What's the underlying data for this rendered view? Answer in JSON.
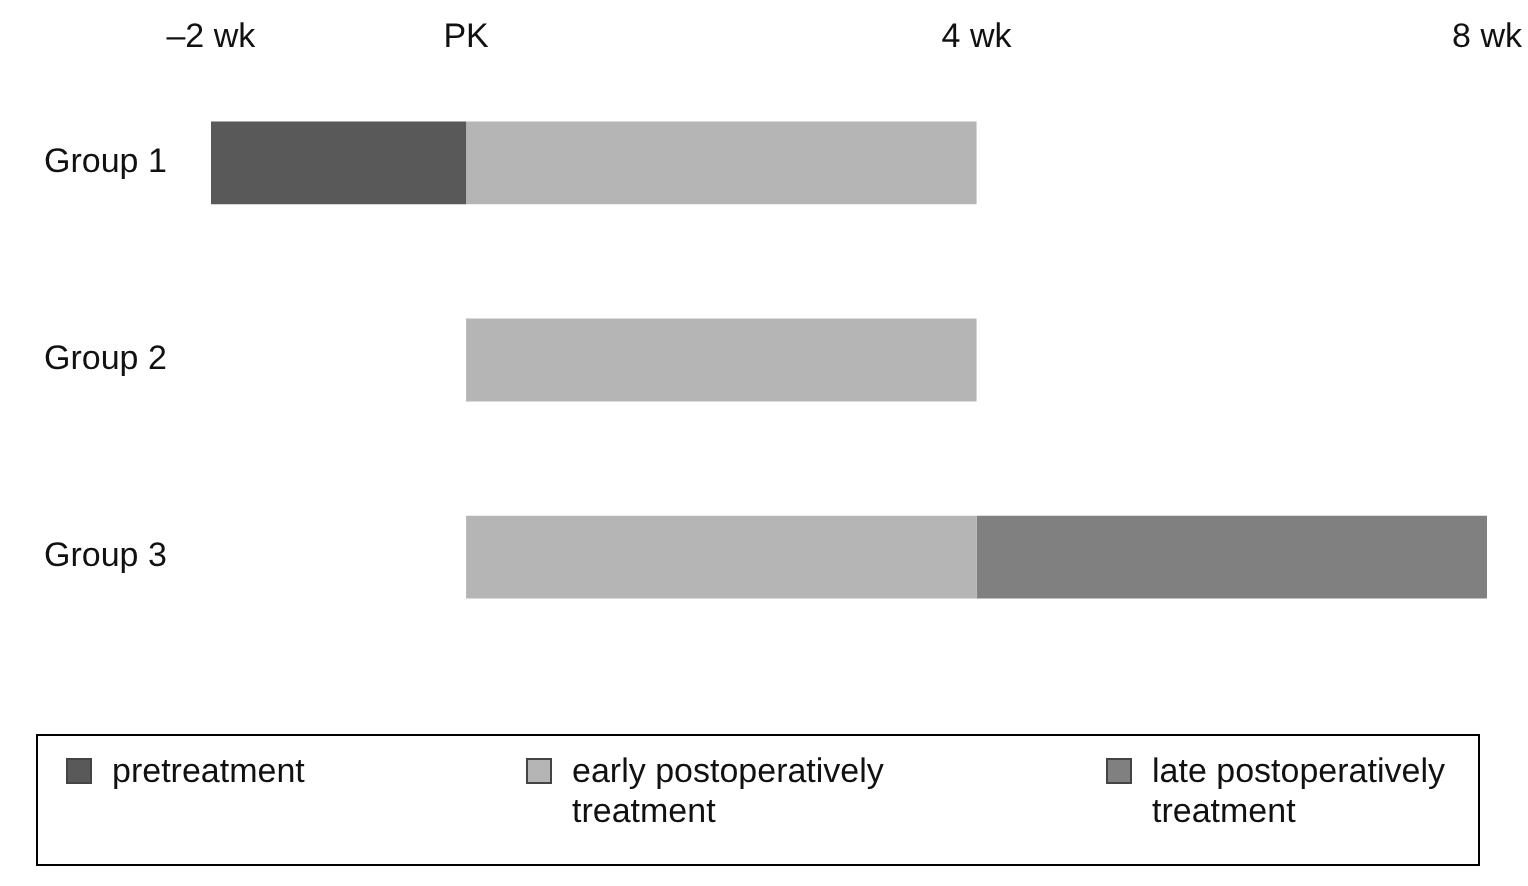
{
  "chart_data": {
    "type": "bar",
    "orientation": "horizontal",
    "categories": [
      "Group 1",
      "Group 2",
      "Group 3"
    ],
    "series": [
      {
        "name": "pretreatment",
        "color": "#595959",
        "base": [
          -2,
          null,
          null
        ],
        "values": [
          2,
          null,
          null
        ]
      },
      {
        "name": "early postoperatively treatment",
        "color": "#b5b5b5",
        "base": [
          0,
          0,
          0
        ],
        "values": [
          4,
          4,
          4
        ]
      },
      {
        "name": "late postoperatively treatment",
        "color": "#808080",
        "base": [
          null,
          null,
          4
        ],
        "values": [
          null,
          null,
          4
        ]
      }
    ],
    "xlim": [
      -2,
      8
    ],
    "xticks": [
      {
        "value": -2,
        "label": "–2 wk"
      },
      {
        "value": 0,
        "label": "PK"
      },
      {
        "value": 4,
        "label": "4 wk"
      },
      {
        "value": 8,
        "label": "8 wk"
      }
    ],
    "grid": false,
    "legend": "bottom"
  }
}
